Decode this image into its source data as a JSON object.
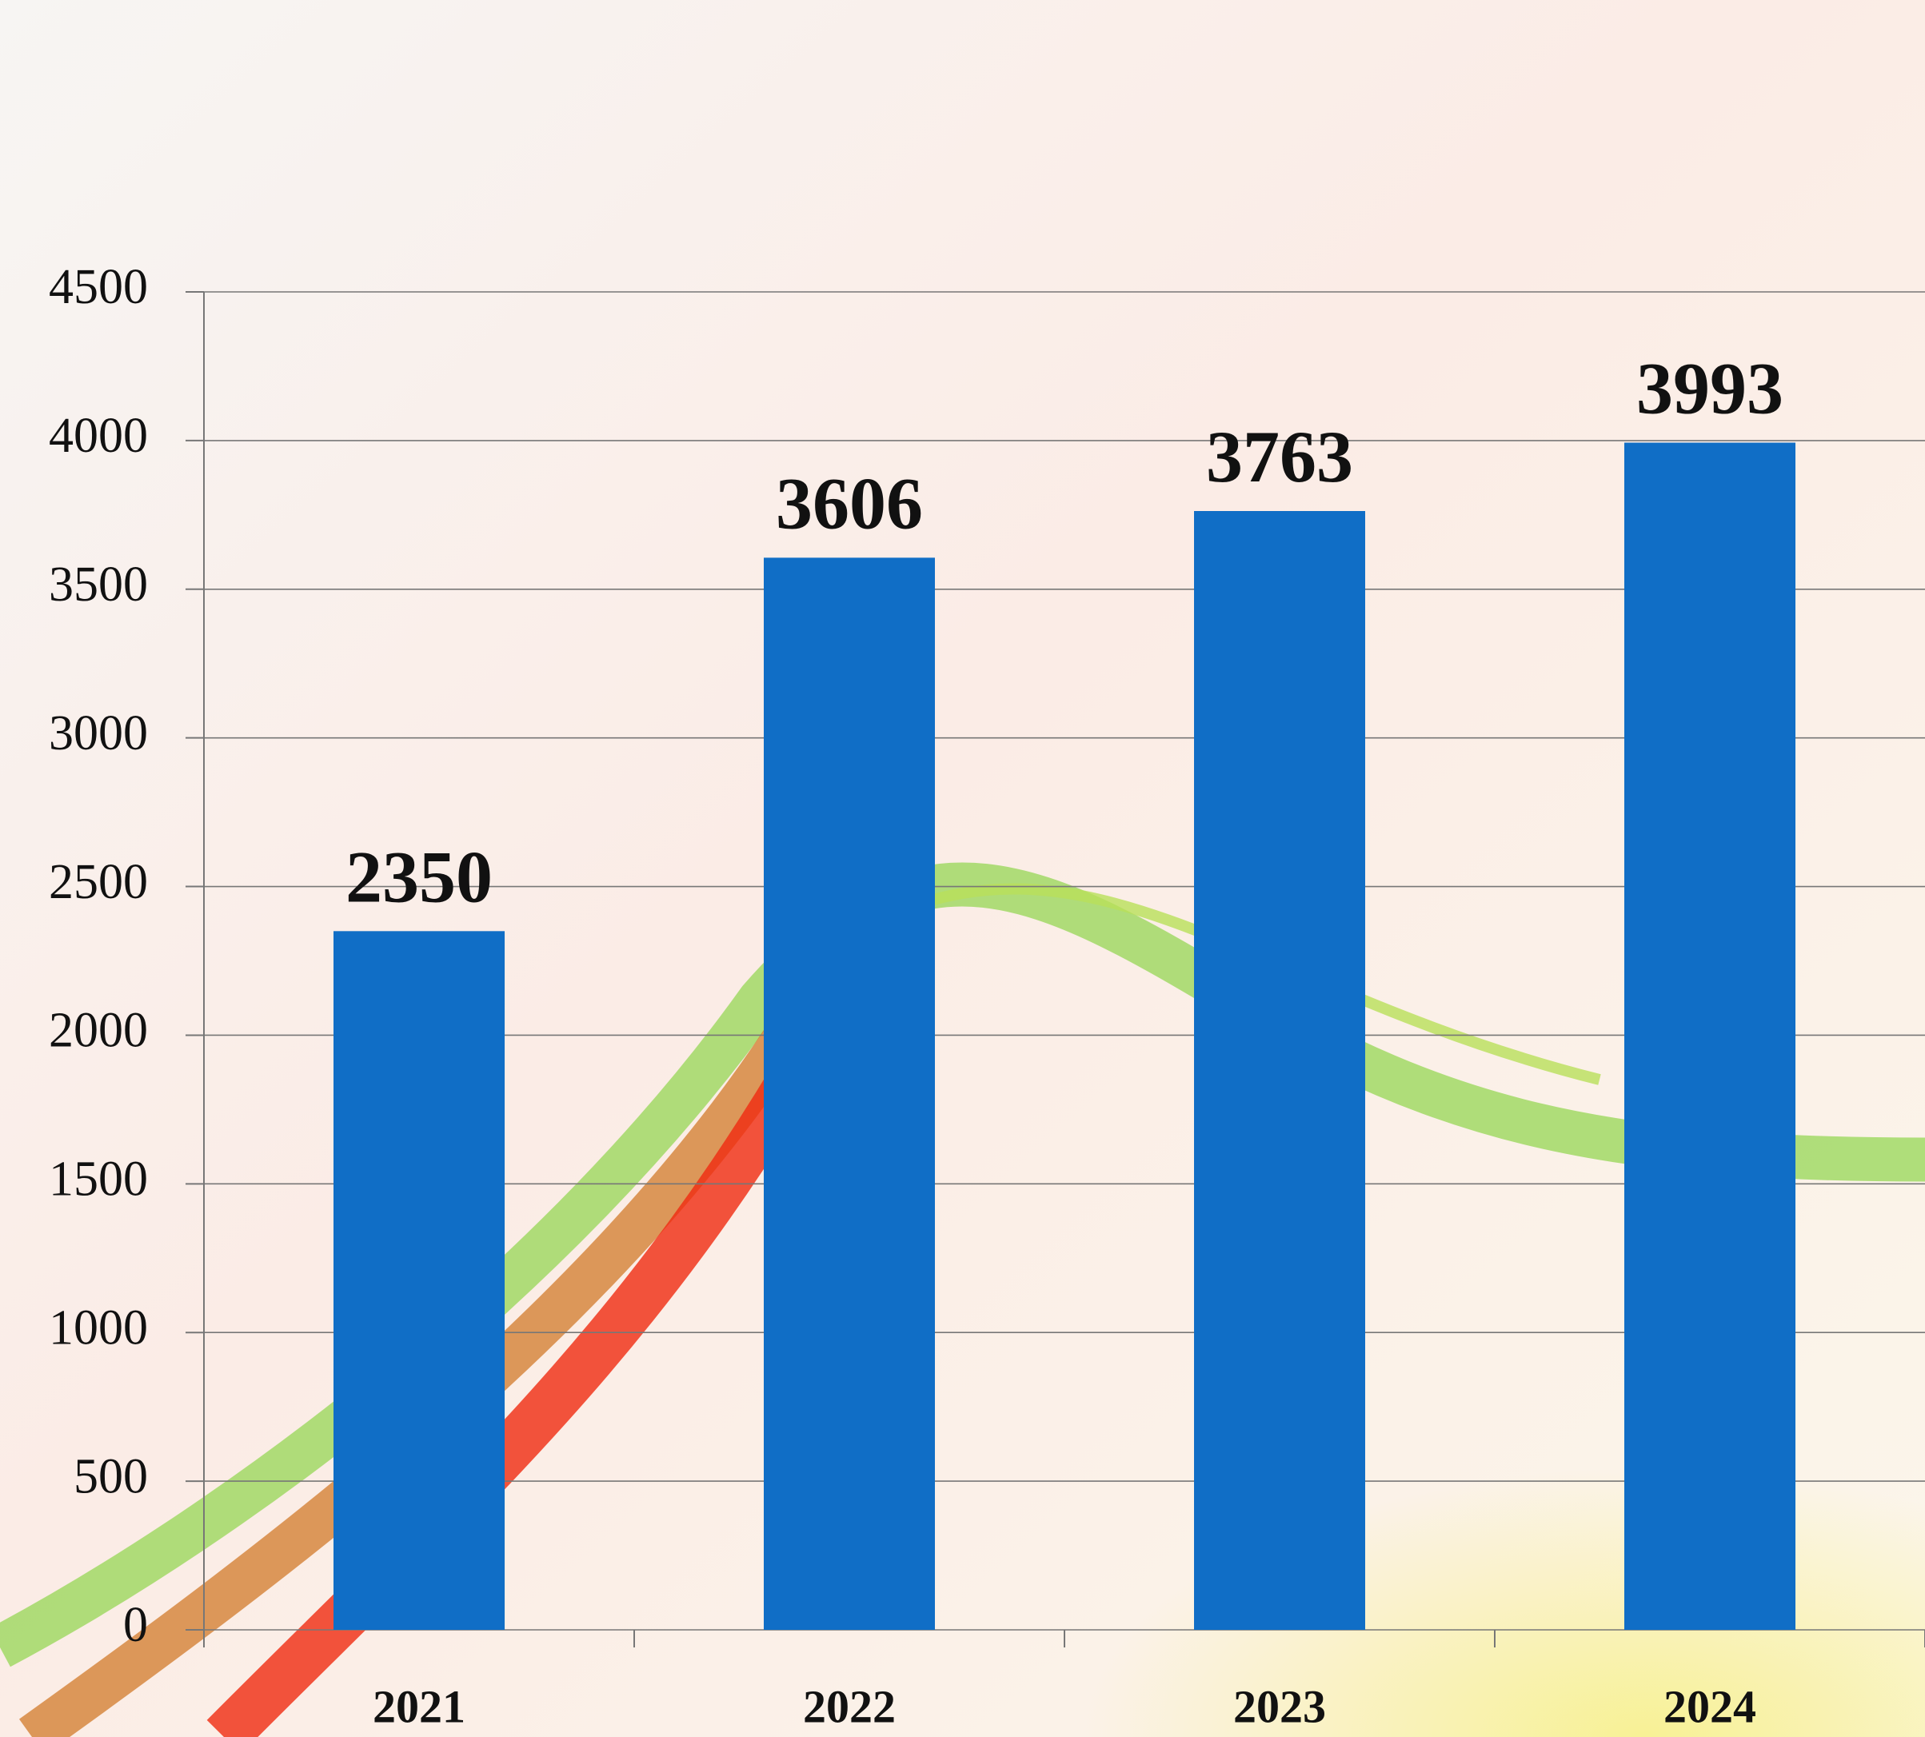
{
  "chart_data": {
    "type": "bar",
    "categories": [
      "2021",
      "2022",
      "2023",
      "2024"
    ],
    "values": [
      2350,
      3606,
      3763,
      3993
    ],
    "color": "#106ec6",
    "ylim": [
      0,
      4500
    ],
    "yticks": [
      0,
      500,
      1000,
      1500,
      2000,
      2500,
      3000,
      3500,
      4000,
      4500
    ],
    "grid": true
  }
}
